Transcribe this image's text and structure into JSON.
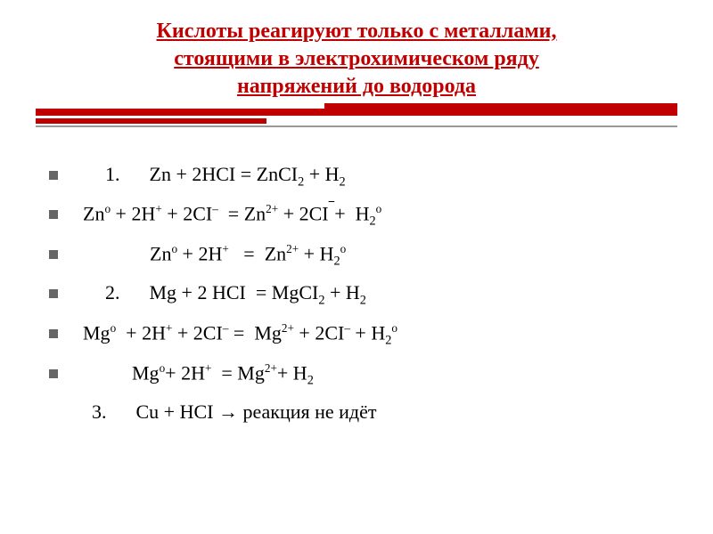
{
  "title": {
    "line1": "Кислоты реагируют только  с металлами,",
    "line2": "стоящими в  электрохимическом ряду",
    "line3": "напряжений до водорода",
    "color": "#c00000",
    "fontsize": 24
  },
  "divider": {
    "primary_color": "#c00000",
    "shadow_color": "#999999"
  },
  "equations": [
    {
      "bullet": true,
      "indent": "indent1",
      "html": "1. &nbsp;&nbsp;&nbsp;&nbsp;&nbsp;Zn + 2HCI = ZnCI<sub>2</sub> + H<sub>2</sub>"
    },
    {
      "bullet": true,
      "indent": "indent2",
      "html": "Zn<sup>o</sup> + 2H<sup>+</sup> + 2CI<sup>–</sup> &nbsp;= Zn<sup>2+</sup> + 2CI<sup class=\"overline\">&nbsp;&nbsp;</sup>+ &nbsp;H<sub>2</sub><sup>o</sup>"
    },
    {
      "bullet": true,
      "indent": "indent3",
      "html": "Zn<sup>o</sup> + 2H<sup>+</sup> &nbsp; = &nbsp;Zn<sup>2+</sup> + H<sub>2</sub><sup>o</sup>"
    },
    {
      "bullet": true,
      "indent": "indent4",
      "html": "2. &nbsp;&nbsp;&nbsp;&nbsp;&nbsp;Mg + 2 HCI &nbsp;= MgCI<sub>2</sub> + H<sub>2</sub>"
    },
    {
      "bullet": true,
      "indent": "indent5",
      "html": "Mg<sup>o</sup> &nbsp;+ 2H<sup>+</sup> + 2CI<sup>–</sup> = &nbsp;Mg<sup>2+</sup> + 2CI<sup>–</sup> + H<sub>2</sub><sup>o</sup>"
    },
    {
      "bullet": true,
      "indent": "indent6",
      "html": "Mg<sup>o</sup>+ 2H<sup>+</sup> &nbsp;= Mg<sup>2+</sup>+ H<sub>2</sub>"
    },
    {
      "bullet": false,
      "indent": "indent7",
      "html": "3. &nbsp;&nbsp;&nbsp;&nbsp;&nbsp;Cu + HCI → реакция не идёт"
    }
  ],
  "styling": {
    "background_color": "#ffffff",
    "text_color": "#000000",
    "bullet_color": "#666666",
    "equation_fontsize": 22,
    "font_family": "Times New Roman"
  }
}
